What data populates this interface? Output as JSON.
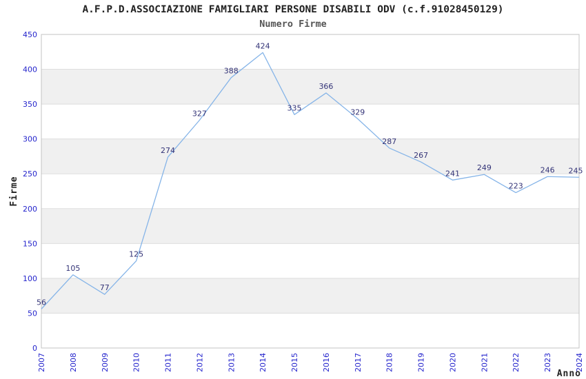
{
  "chart_data": {
    "type": "line",
    "title": "A.F.P.D.ASSOCIAZIONE FAMIGLIARI PERSONE DISABILI ODV (c.f.91028450129)",
    "subtitle": "Numero Firme",
    "xlabel": "Anno",
    "ylabel": "Firme",
    "categories": [
      "2007",
      "2008",
      "2009",
      "2010",
      "2011",
      "2012",
      "2013",
      "2014",
      "2015",
      "2016",
      "2017",
      "2018",
      "2019",
      "2020",
      "2021",
      "2022",
      "2023",
      "2024"
    ],
    "values": [
      56,
      105,
      77,
      125,
      274,
      327,
      388,
      424,
      335,
      366,
      329,
      287,
      267,
      241,
      249,
      223,
      246,
      245
    ],
    "ylim": [
      0,
      450
    ],
    "yticks": [
      0,
      50,
      100,
      150,
      200,
      250,
      300,
      350,
      400,
      450
    ],
    "grid": "horizontal",
    "legend": "none",
    "band_fill": "alternating",
    "markers": "none",
    "data_labels": "above-points",
    "x_tick_rotation": -90,
    "colors": {
      "line": "#85b4e8",
      "value_label": "#333377",
      "tick_label": "#2424cc",
      "band": "#f0f0f0",
      "grid": "#dddddd",
      "border": "#c3c3c3",
      "title": "#222222",
      "subtitle": "#555555",
      "axis_title": "#222222",
      "background": "#ffffff"
    }
  }
}
